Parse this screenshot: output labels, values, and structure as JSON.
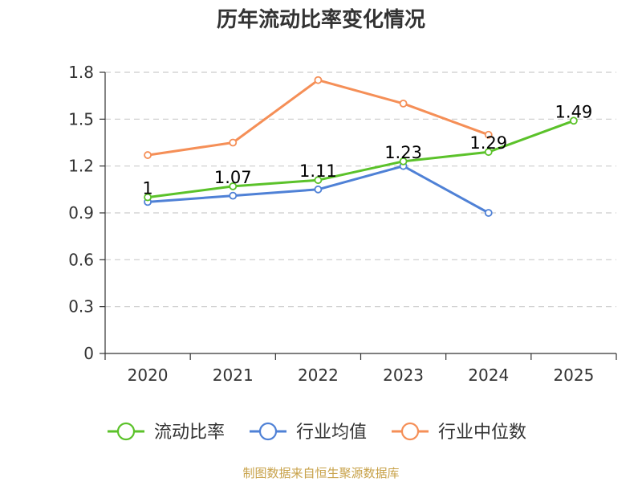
{
  "chart_data": {
    "type": "line",
    "title": "历年流动比率变化情况",
    "categories": [
      "2020",
      "2021",
      "2022",
      "2023",
      "2024",
      "2025"
    ],
    "ylim": [
      0,
      1.8
    ],
    "yticks": [
      "0",
      "0.3",
      "0.6",
      "0.9",
      "1.2",
      "1.5",
      "1.8"
    ],
    "grid": true,
    "legend_position": "bottom",
    "series": [
      {
        "name": "流动比率",
        "color": "#5bc22a",
        "values": [
          1.0,
          1.07,
          1.11,
          1.23,
          1.29,
          1.49
        ],
        "labels": [
          "1",
          "1.07",
          "1.11",
          "1.23",
          "1.29",
          "1.49"
        ]
      },
      {
        "name": "行业均值",
        "color": "#4f81d6",
        "values": [
          0.97,
          1.01,
          1.05,
          1.2,
          0.9,
          null
        ]
      },
      {
        "name": "行业中位数",
        "color": "#f58f57",
        "values": [
          1.27,
          1.35,
          1.75,
          1.6,
          1.4,
          null
        ]
      }
    ]
  },
  "source": "制图数据来自恒生聚源数据库"
}
